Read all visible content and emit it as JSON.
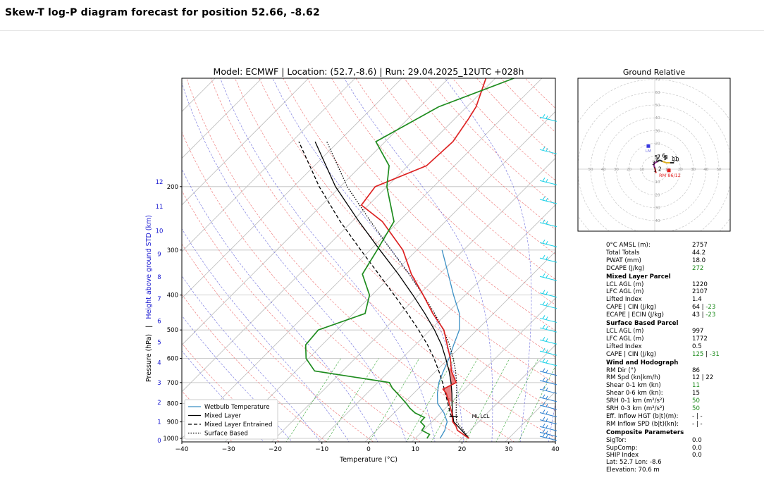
{
  "page": {
    "title": "Skew-T log-P diagram forecast for position 52.66, -8.62"
  },
  "chart_data": [
    {
      "type": "line",
      "title": "Model: ECMWF | Location: (52.7,-8.6) | Run: 29.04.2025_12UTC +028h",
      "xlabel": "Temperature (°C)",
      "ylabel_left": "Pressure (hPa)",
      "ylabel_sep": "|",
      "ylabel_right": "Height above ground STD (km)",
      "xlim": [
        -40,
        40
      ],
      "ylim": [
        1000,
        100
      ],
      "y_scale": "log",
      "skew": "45 degrees",
      "x_ticks": [
        "−40",
        "−30",
        "−20",
        "−10",
        "0",
        "10",
        "20",
        "30",
        "40"
      ],
      "pressure_ticks": [
        200,
        300,
        400,
        500,
        600,
        700,
        800,
        900,
        1000
      ],
      "height_ticks": [
        {
          "km": "0",
          "p": 1013
        },
        {
          "km": "1",
          "p": 900
        },
        {
          "km": "2",
          "p": 795
        },
        {
          "km": "3",
          "p": 700
        },
        {
          "km": "4",
          "p": 616
        },
        {
          "km": "5",
          "p": 540
        },
        {
          "km": "6",
          "p": 472
        },
        {
          "km": "7",
          "p": 410
        },
        {
          "km": "8",
          "p": 356
        },
        {
          "km": "9",
          "p": 308
        },
        {
          "km": "10",
          "p": 265
        },
        {
          "km": "11",
          "p": 227
        },
        {
          "km": "12",
          "p": 194
        }
      ],
      "grid": true,
      "legend_position": "bottom-left",
      "series": [
        {
          "name": "Wetbulb Temperature",
          "color": "#3a8fc4",
          "style": "solid",
          "points": [
            [
              1000,
              15.3
            ],
            [
              950,
              14.6
            ],
            [
              925,
              13.9
            ],
            [
              900,
              13.3
            ],
            [
              850,
              10.7
            ],
            [
              800,
              7.3
            ],
            [
              750,
              5.1
            ],
            [
              700,
              3.1
            ],
            [
              650,
              1.6
            ],
            [
              600,
              0.1
            ],
            [
              550,
              -1.8
            ],
            [
              500,
              -3.8
            ],
            [
              450,
              -7.3
            ],
            [
              400,
              -12.5
            ],
            [
              350,
              -18.1
            ],
            [
              300,
              -24.6
            ]
          ]
        },
        {
          "name": "Mixed Layer",
          "color": "#000000",
          "style": "solid",
          "points": [
            [
              1000,
              21.5
            ],
            [
              950,
              18.2
            ],
            [
              925,
              16.5
            ],
            [
              900,
              14.7
            ],
            [
              850,
              12.5
            ],
            [
              800,
              10.4
            ],
            [
              750,
              8.2
            ],
            [
              700,
              5.7
            ],
            [
              650,
              2.8
            ],
            [
              600,
              -0.6
            ],
            [
              550,
              -4.4
            ],
            [
              500,
              -9.1
            ],
            [
              450,
              -14.7
            ],
            [
              400,
              -21.2
            ],
            [
              350,
              -28.8
            ],
            [
              300,
              -37.9
            ],
            [
              250,
              -48.5
            ],
            [
              200,
              -61.0
            ],
            [
              150,
              -75.0
            ]
          ]
        },
        {
          "name": "Mixed Layer Entrained",
          "color": "#000000",
          "style": "dashed",
          "points": [
            [
              900,
              14.7
            ],
            [
              850,
              12.0
            ],
            [
              800,
              9.5
            ],
            [
              750,
              6.8
            ],
            [
              700,
              3.9
            ],
            [
              650,
              0.6
            ],
            [
              600,
              -3.1
            ],
            [
              550,
              -7.4
            ],
            [
              500,
              -12.5
            ],
            [
              450,
              -18.4
            ],
            [
              400,
              -25.2
            ],
            [
              350,
              -33.0
            ],
            [
              300,
              -42.0
            ],
            [
              250,
              -52.5
            ],
            [
              200,
              -64.5
            ],
            [
              150,
              -78.5
            ]
          ]
        },
        {
          "name": "Surface Based",
          "color": "#000000",
          "style": "dotted",
          "points": [
            [
              1000,
              21.5
            ],
            [
              950,
              18.6
            ],
            [
              925,
              17.0
            ],
            [
              900,
              15.3
            ],
            [
              850,
              13.3
            ],
            [
              800,
              11.3
            ],
            [
              750,
              9.2
            ],
            [
              700,
              6.9
            ],
            [
              650,
              4.2
            ],
            [
              600,
              1.0
            ],
            [
              550,
              -2.7
            ],
            [
              500,
              -7.2
            ],
            [
              450,
              -12.6
            ],
            [
              400,
              -19.0
            ],
            [
              350,
              -26.5
            ],
            [
              300,
              -35.5
            ],
            [
              250,
              -46.0
            ],
            [
              200,
              -58.5
            ],
            [
              150,
              -72.5
            ]
          ]
        },
        {
          "name": "Temperature",
          "color": "#dd2222",
          "style": "solid",
          "points": [
            [
              1000,
              21.5
            ],
            [
              950,
              17.3
            ],
            [
              925,
              16.1
            ],
            [
              900,
              14.5
            ],
            [
              850,
              12.4
            ],
            [
              800,
              9.8
            ],
            [
              750,
              7.0
            ],
            [
              730,
              5.4
            ],
            [
              700,
              6.8
            ],
            [
              650,
              3.3
            ],
            [
              600,
              0.4
            ],
            [
              550,
              -3.2
            ],
            [
              500,
              -7.1
            ],
            [
              450,
              -13.0
            ],
            [
              400,
              -19.0
            ],
            [
              350,
              -26.0
            ],
            [
              300,
              -33.0
            ],
            [
              250,
              -43.5
            ],
            [
              225,
              -51.5
            ],
            [
              200,
              -52.5
            ],
            [
              175,
              -46.0
            ],
            [
              150,
              -45.5
            ],
            [
              130,
              -47.0
            ],
            [
              120,
              -48.0
            ],
            [
              100,
              -52.0
            ]
          ]
        },
        {
          "name": "Dew Point",
          "color": "#1e8c1e",
          "style": "solid",
          "points": [
            [
              1000,
              12.5
            ],
            [
              975,
              12.2
            ],
            [
              950,
              9.7
            ],
            [
              925,
              9.4
            ],
            [
              900,
              7.6
            ],
            [
              875,
              7.5
            ],
            [
              850,
              4.5
            ],
            [
              825,
              2.4
            ],
            [
              800,
              0.6
            ],
            [
              775,
              -1.4
            ],
            [
              750,
              -3.5
            ],
            [
              725,
              -5.7
            ],
            [
              700,
              -7.5
            ],
            [
              650,
              -26.0
            ],
            [
              600,
              -30.5
            ],
            [
              550,
              -33.5
            ],
            [
              500,
              -34.0
            ],
            [
              450,
              -27.5
            ],
            [
              400,
              -30.5
            ],
            [
              350,
              -36.5
            ],
            [
              300,
              -38.5
            ],
            [
              250,
              -41.0
            ],
            [
              200,
              -50.0
            ],
            [
              175,
              -54.0
            ],
            [
              150,
              -62.0
            ],
            [
              120,
              -56.0
            ],
            [
              100,
              -46.0
            ]
          ]
        }
      ],
      "labels": {
        "ml_lcl": "ML LCL"
      }
    },
    {
      "type": "scatter",
      "title": "Ground Relative",
      "rings": [
        10,
        20,
        30,
        40,
        50,
        60,
        70
      ],
      "axis_labels_x": [
        "50",
        "40",
        "30",
        "20",
        "10",
        "10",
        "20",
        "30",
        "40",
        "50",
        "60"
      ],
      "axis_labels_y": [
        "70",
        "60",
        "50",
        "40",
        "30",
        "20",
        "10",
        "10",
        "20",
        "30",
        "40"
      ],
      "lm_marker": {
        "label": "LM",
        "u": -5,
        "v": 18
      },
      "rm_marker": {
        "label": "RM 86/12",
        "u": 11,
        "v": -1
      },
      "hodograph_points": [
        [
          1,
          -3
        ],
        [
          0,
          1
        ],
        [
          -1,
          4
        ],
        [
          2,
          6
        ],
        [
          4,
          7
        ],
        [
          6,
          6
        ],
        [
          9,
          5
        ],
        [
          12,
          5
        ],
        [
          15,
          5
        ]
      ],
      "height_labels": [
        "1",
        "2",
        "3",
        "4",
        "5",
        "6",
        "7",
        "8",
        "9",
        "10",
        "11"
      ]
    }
  ],
  "parameters": {
    "rows_top": [
      {
        "label": "0°C AMSL (m):",
        "value": "2757"
      },
      {
        "label": "Total Totals",
        "value": "44.2"
      },
      {
        "label": "PWAT (mm)",
        "value": "18.0"
      },
      {
        "label": "DCAPE (J/kg)",
        "value": "272",
        "green": true
      }
    ],
    "mixed_layer": {
      "title": "Mixed Layer Parcel",
      "rows": [
        {
          "label": "LCL AGL (m)",
          "value": "1220"
        },
        {
          "label": "LFC AGL (m)",
          "value": "2107"
        },
        {
          "label": "Lifted Index",
          "value": "1.4"
        }
      ],
      "cape_label": "CAPE | CIN (J/kg)",
      "cape": "64",
      "cin": "-23",
      "ecape_label": "ECAPE | ECIN (J/kg)",
      "ecape": "43",
      "ecin": "-23"
    },
    "surface_based": {
      "title": "Surface Based Parcel",
      "rows": [
        {
          "label": "LCL AGL (m)",
          "value": "997"
        },
        {
          "label": "LFC AGL (m)",
          "value": "1772"
        },
        {
          "label": "Lifted Index",
          "value": "0.5"
        }
      ],
      "cape_label": "CAPE | CIN (J/kg)",
      "cape": "125",
      "cin": "-31"
    },
    "wind": {
      "title": "Wind and Hodograph",
      "rows": [
        {
          "label": "RM Dir (°)",
          "value": "86"
        },
        {
          "label": "RM Spd (kn|km/h)",
          "value": "12 | 22"
        },
        {
          "label": "Shear 0-1 km (kn)",
          "value": "11",
          "green": true
        },
        {
          "label": "Shear 0-6 km (kn):",
          "value": "15"
        },
        {
          "label": "SRH 0-1 km (m²/s²)",
          "value": "50",
          "green": true
        },
        {
          "label": "SRH 0-3 km (m²/s²)",
          "value": "50",
          "green": true
        },
        {
          "label": "Eff. Inflow HGT (b|t)(m):",
          "value": "- | -"
        },
        {
          "label": "RM Inflow SPD (b|t)(kn):",
          "value": "- | -"
        }
      ]
    },
    "composite": {
      "title": "Composite Parameters",
      "rows": [
        {
          "label": "SigTor:",
          "value": "0.0"
        },
        {
          "label": "SupComp:",
          "value": "0.0"
        },
        {
          "label": "SHIP Index",
          "value": "0.0"
        }
      ]
    }
  },
  "footer": {
    "latlon": "Lat: 52.7  Lon: -8.6",
    "elevation": "Elevation: 70.6 m"
  }
}
